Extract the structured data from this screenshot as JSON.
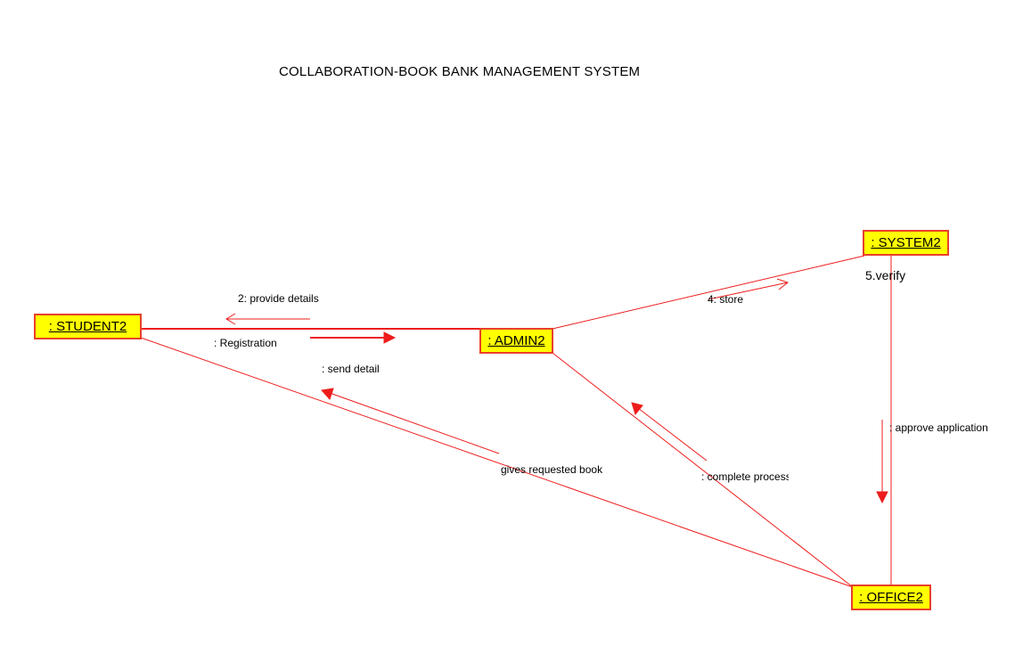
{
  "title": "COLLABORATION-BOOK BANK MANAGEMENT SYSTEM",
  "colors": {
    "line": "#ee1c1c",
    "object_fill": "#ffff00",
    "object_border": "#e8402a"
  },
  "objects": {
    "student": ": STUDENT2",
    "admin": ": ADMIN2",
    "system": ": SYSTEM2",
    "office": ": OFFICE2"
  },
  "messages": {
    "provide_details": "2: provide details",
    "registration": ": Registration",
    "send_detail": ": send detail",
    "store": "4: store",
    "verify": "5.verify",
    "approve_application": ": approve application",
    "complete_process": ": complete process",
    "gives_requested_book": "gives requested book"
  }
}
